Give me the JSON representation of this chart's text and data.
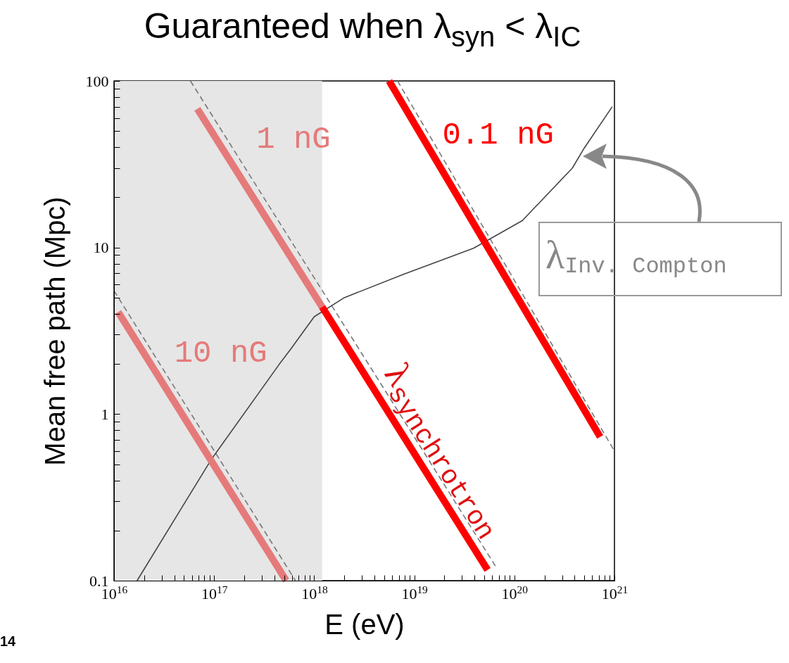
{
  "chart_data": {
    "type": "line",
    "title": "Guaranteed when λ$_{syn}$ < λ$_{IC}$",
    "xlabel": "E (eV)",
    "ylabel": "Mean free path (Mpc)",
    "log": "xy",
    "xlim": [
      1e+16,
      1e+21
    ],
    "ylim": [
      0.1,
      100
    ],
    "xticks": [
      {
        "value": 1e+16,
        "label": "10$^{16}$"
      },
      {
        "value": 2e+16,
        "label": null
      },
      {
        "value": 3e+16,
        "label": null
      },
      {
        "value": 4e+16,
        "label": null
      },
      {
        "value": 5e+16,
        "label": null
      },
      {
        "value": 6e+16,
        "label": null
      },
      {
        "value": 7e+16,
        "label": null
      },
      {
        "value": 8e+16,
        "label": null
      },
      {
        "value": 9e+16,
        "label": null
      },
      {
        "value": 1e+17,
        "label": "10$^{17}$"
      },
      {
        "value": 2e+17,
        "label": null
      },
      {
        "value": 3e+17,
        "label": null
      },
      {
        "value": 4e+17,
        "label": null
      },
      {
        "value": 5e+17,
        "label": null
      },
      {
        "value": 6e+17,
        "label": null
      },
      {
        "value": 7e+17,
        "label": null
      },
      {
        "value": 8e+17,
        "label": null
      },
      {
        "value": 9e+17,
        "label": null
      },
      {
        "value": 1e+18,
        "label": "10$^{18}$"
      },
      {
        "value": 2e+18,
        "label": null
      },
      {
        "value": 3e+18,
        "label": null
      },
      {
        "value": 4e+18,
        "label": null
      },
      {
        "value": 5e+18,
        "label": null
      },
      {
        "value": 6e+18,
        "label": null
      },
      {
        "value": 7e+18,
        "label": null
      },
      {
        "value": 8e+18,
        "label": null
      },
      {
        "value": 9e+18,
        "label": null
      },
      {
        "value": 1e+19,
        "label": "10$^{19}$"
      },
      {
        "value": 2e+19,
        "label": null
      },
      {
        "value": 3e+19,
        "label": null
      },
      {
        "value": 4e+19,
        "label": null
      },
      {
        "value": 5e+19,
        "label": null
      },
      {
        "value": 6e+19,
        "label": null
      },
      {
        "value": 7e+19,
        "label": null
      },
      {
        "value": 8e+19,
        "label": null
      },
      {
        "value": 9e+19,
        "label": null
      },
      {
        "value": 1e+20,
        "label": "10$^{20}$"
      },
      {
        "value": 2e+20,
        "label": null
      },
      {
        "value": 3e+20,
        "label": null
      },
      {
        "value": 4e+20,
        "label": null
      },
      {
        "value": 5e+20,
        "label": null
      },
      {
        "value": 6e+20,
        "label": null
      },
      {
        "value": 7e+20,
        "label": null
      },
      {
        "value": 8e+20,
        "label": null
      },
      {
        "value": 9e+20,
        "label": null
      },
      {
        "value": 1e+21,
        "label": "10$^{21}$"
      }
    ],
    "yticks": [
      0.1,
      {
        "value": 0.2,
        "label": null
      },
      {
        "value": 0.3,
        "label": null
      },
      {
        "value": 0.4,
        "label": null
      },
      {
        "value": 0.5,
        "label": null
      },
      {
        "value": 0.6,
        "label": null
      },
      {
        "value": 0.7,
        "label": null
      },
      {
        "value": 0.8,
        "label": null
      },
      {
        "value": 0.9,
        "label": null
      },
      1,
      {
        "value": 2,
        "label": null
      },
      {
        "value": 3,
        "label": null
      },
      {
        "value": 4,
        "label": null
      },
      {
        "value": 5,
        "label": null
      },
      {
        "value": 6,
        "label": null
      },
      {
        "value": 7,
        "label": null
      },
      {
        "value": 8,
        "label": null
      },
      {
        "value": 9,
        "label": null
      },
      10,
      {
        "value": 20,
        "label": null
      },
      {
        "value": 30,
        "label": null
      },
      {
        "value": 40,
        "label": null
      },
      {
        "value": 50,
        "label": null
      },
      {
        "value": 60,
        "label": null
      },
      {
        "value": 70,
        "label": null
      },
      {
        "value": 80,
        "label": null
      },
      {
        "value": 90,
        "label": null
      },
      100
    ],
    "series": [
      {
        "color": "#777777",
        "line_style": "dashed",
        "x": [
          1e+16,
          6.5e+17
        ],
        "values": [
          5.5,
          0.1
        ]
      },
      {
        "color": "#777777",
        "line_style": "dashed",
        "x": [
          5.8e+16,
          6.6e+19
        ],
        "values": [
          100,
          0.12
        ]
      },
      {
        "color": "#777777",
        "line_style": "dashed",
        "x": [
          6.8e+18,
          1e+21
        ],
        "values": [
          100,
          0.6
        ]
      },
      {
        "color": "#444444",
        "x": [
          1.7e+16,
          9.3e+16,
          4.5e+17,
          5.9e+17,
          1e+18,
          2e+18,
          7.8e+18,
          3.9e+19,
          1.2e+20,
          3.8e+20,
          5e+20,
          9.5e+20
        ],
        "values": [
          0.1,
          0.53,
          2.0,
          2.48,
          3.84,
          5.0,
          6.9,
          9.9,
          14.5,
          30,
          39.6,
          70
        ]
      },
      {
        "name": "10 nG",
        "color": "#e57a7a",
        "x": [
          1.1e+16,
          5.25e+17
        ],
        "values": [
          4.1,
          0.1
        ]
      },
      {
        "name": "1 nG",
        "color": "#e57a7a",
        "x": [
          6.8e+16,
          1.2e+18
        ],
        "values": [
          68,
          4.4
        ]
      },
      {
        "color": "#ff0000",
        "x": [
          1.2e+18,
          5.4e+19
        ],
        "values": [
          4.4,
          0.116
        ]
      },
      {
        "name": "0.1 nG",
        "color": "#ff0000",
        "x": [
          5.6e+18,
          7.2e+20
        ],
        "values": [
          100,
          0.73
        ]
      }
    ],
    "bands": [
      {
        "axis": "x",
        "from": 1e+16,
        "to": 1.2e+18,
        "color": "#e6e6e6"
      }
    ],
    "annotations": [
      "λ$_{synchrotron}$",
      "λ$_{Inv. Compton}$",
      "14"
    ]
  }
}
